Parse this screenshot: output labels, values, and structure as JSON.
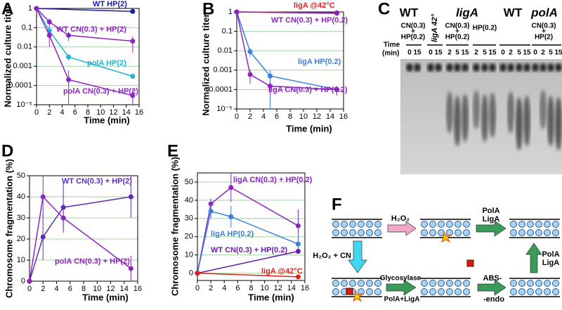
{
  "chart_data": [
    {
      "type": "line",
      "panel_label": "A",
      "y_label": "Normalized culture titer",
      "x_label": "Time (min)",
      "log_y": true,
      "grid": true,
      "grid_color": "#9fd49f",
      "xlim": [
        0,
        16
      ],
      "xticks": [
        0,
        2,
        4,
        6,
        8,
        10,
        12,
        14,
        16
      ],
      "ylim": [
        1e-05,
        1
      ],
      "yticks": [
        1,
        0.1,
        0.01,
        0.001,
        0.0001,
        {
          "value": 1e-05,
          "label": "10⁻⁵"
        }
      ],
      "series": [
        {
          "name": "WT HP(2)",
          "color": "#1c1caa",
          "x": [
            0,
            15
          ],
          "values": [
            1,
            0.7
          ],
          "errors": [
            null,
            null
          ]
        },
        {
          "name": "WT CN(0.3) + HP(2)",
          "color": "#8e24c0",
          "x": [
            0,
            2,
            5,
            15
          ],
          "values": [
            1,
            0.2,
            0.04,
            0.02
          ],
          "errors": [
            null,
            0.1,
            0.02,
            0.015
          ]
        },
        {
          "name": "polA HP(2)",
          "color": "#22b4d4",
          "x": [
            0,
            2,
            5,
            15
          ],
          "values": [
            1,
            0.07,
            0.003,
            0.0003
          ],
          "errors": [
            null,
            null,
            0.001,
            null
          ]
        },
        {
          "name": "polA CN(0.3) + HP(2)",
          "color": "#8e24c0",
          "x": [
            0,
            2,
            5,
            15
          ],
          "values": [
            1,
            0.04,
            0.0002,
            3e-05
          ],
          "errors": [
            null,
            0.03,
            0.0004,
            3e-05
          ]
        }
      ]
    },
    {
      "type": "line",
      "panel_label": "B",
      "y_label": "Normalized culture titer",
      "x_label": "Time (min)",
      "log_y": true,
      "grid": true,
      "grid_color": "#9fd49f",
      "xlim": [
        0,
        16
      ],
      "xticks": [
        0,
        2,
        4,
        6,
        8,
        10,
        12,
        14,
        16
      ],
      "ylim": [
        1e-05,
        1
      ],
      "yticks": [
        1,
        0.1,
        0.01,
        0.001,
        0.0001,
        {
          "value": 1e-05,
          "label": "10⁻⁵"
        }
      ],
      "series": [
        {
          "name": "ligA @42°C",
          "color": "#e02020",
          "x": [
            0,
            15
          ],
          "values": [
            1,
            0.9
          ],
          "errors": [
            null,
            null
          ]
        },
        {
          "name": "WT CN(0.3) + HP(0.2)",
          "color": "#8e24c0",
          "x": [
            0,
            15
          ],
          "values": [
            1,
            0.85
          ],
          "errors": [
            null,
            null
          ]
        },
        {
          "name": "ligA HP(0.2)",
          "color": "#3a80d8",
          "x": [
            0,
            2,
            5,
            15
          ],
          "values": [
            1,
            0.009,
            0.0005,
            0.0001
          ],
          "errors": [
            null,
            0.004,
            0.0005,
            5e-05
          ]
        },
        {
          "name": "ligA CN(0.3) + HP(0.2)",
          "color": "#8e24c0",
          "x": [
            0,
            2,
            5,
            15
          ],
          "values": [
            1,
            0.0006,
            0.00015,
            0.0001
          ],
          "errors": [
            null,
            0.0004,
            0.0001,
            5e-05
          ]
        }
      ]
    },
    {
      "type": "line",
      "panel_label": "D",
      "y_label": "Chromosome fragmentation (%)",
      "x_label": "Time (min)",
      "log_y": false,
      "grid": true,
      "grid_color": "#9fd49f",
      "xlim": [
        0,
        16
      ],
      "xticks": [
        0,
        2,
        4,
        6,
        8,
        10,
        12,
        14,
        16
      ],
      "ylim": [
        0,
        50
      ],
      "yticks": [
        0,
        10,
        20,
        30,
        40,
        50
      ],
      "series": [
        {
          "name": "WT CN(0.3) + HP(2)",
          "color": "#5a2db8",
          "x": [
            0,
            2,
            5,
            15
          ],
          "values": [
            0,
            21,
            35,
            40
          ],
          "errors": [
            null,
            11,
            12,
            10
          ]
        },
        {
          "name": "polA CN(0.3) + HP(2)",
          "color": "#8e24c0",
          "x": [
            0,
            2,
            5,
            15
          ],
          "values": [
            0,
            40,
            30,
            6
          ],
          "errors": [
            null,
            10,
            5,
            6
          ]
        }
      ]
    },
    {
      "type": "line",
      "panel_label": "E",
      "y_label": "Chromosome fragmentation (%)",
      "x_label": "Time (min)",
      "log_y": false,
      "grid": true,
      "grid_color": "#9fd49f",
      "xlim": [
        0,
        16
      ],
      "xticks": [
        0,
        2,
        4,
        6,
        8,
        10,
        12,
        14,
        16
      ],
      "ylim": [
        -4,
        55
      ],
      "yticks": [
        0,
        10,
        20,
        30,
        40,
        50
      ],
      "series": [
        {
          "name": "ligA CN(0.3) + HP(0.2)",
          "color": "#8e24c0",
          "x": [
            0,
            2,
            5,
            15
          ],
          "values": [
            0,
            38,
            47,
            26
          ],
          "errors": [
            null,
            3,
            8,
            9
          ]
        },
        {
          "name": "ligA HP(0.2)",
          "color": "#3a80d8",
          "x": [
            0,
            2,
            5,
            15
          ],
          "values": [
            0,
            34,
            31,
            16
          ],
          "errors": [
            null,
            4,
            6,
            5
          ]
        },
        {
          "name": "WT CN(0.3) + HP(0.2)",
          "color": "#6a1aa8",
          "x": [
            0,
            15
          ],
          "values": [
            0,
            12
          ],
          "errors": [
            null,
            null
          ]
        },
        {
          "name": "ligA @42°C",
          "color": "#e02020",
          "x": [
            0,
            15
          ],
          "values": [
            0,
            -2
          ],
          "errors": [
            null,
            null
          ]
        }
      ]
    }
  ],
  "gel": {
    "panel_label": "C",
    "headers": [
      "WT",
      "ligA 42°",
      "ligA",
      "WT",
      "polA"
    ],
    "conditions": [
      [
        "CN(0.3)",
        "+",
        "HP(0.2)"
      ],
      [
        "CN(0.3)",
        "+",
        "HP(0.2)"
      ],
      [
        "HP(0.2)"
      ],
      [
        "CN(0.3)",
        "+",
        "HP(2)"
      ]
    ],
    "time_label": [
      "Time",
      "(min)"
    ],
    "lanes": [
      0,
      15,
      0,
      15,
      2,
      5,
      15,
      2,
      5,
      15,
      0,
      2,
      5,
      15,
      0,
      2,
      5,
      15
    ]
  },
  "diagram": {
    "panel_label": "F",
    "h2o2": "H₂O₂",
    "repair_top": [
      "PolA",
      "LigA"
    ],
    "h2o2_cn": "H₂O₂ + CN",
    "glycosylase": "Glycosylase",
    "pola_liga": "PolA+LigA",
    "abs_endo": [
      "ABS-",
      "-endo"
    ],
    "repair_right": [
      "PolA",
      "LigA"
    ]
  }
}
